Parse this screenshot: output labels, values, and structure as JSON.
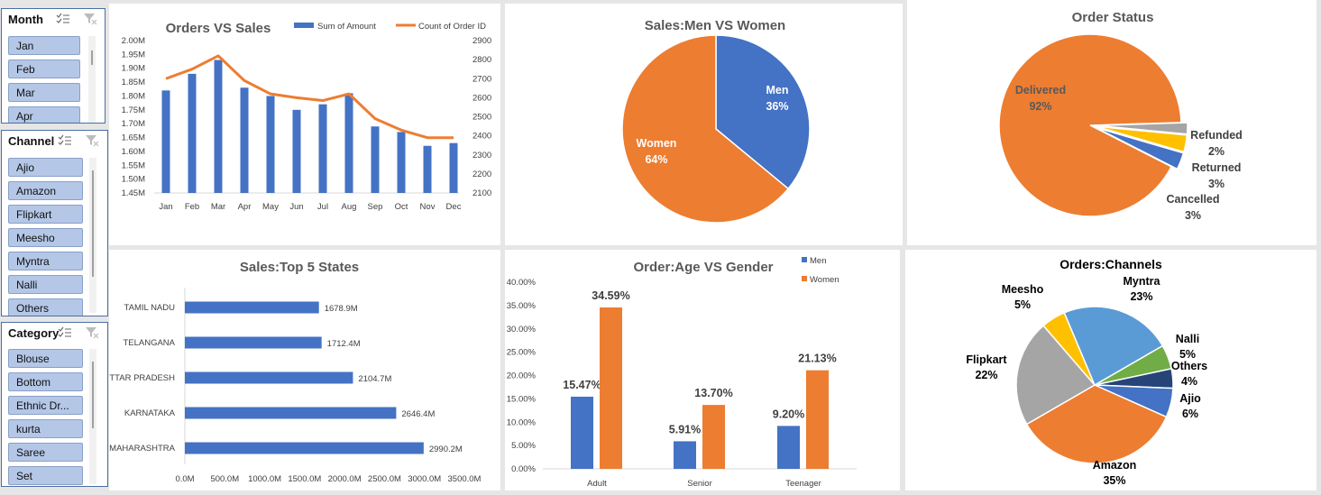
{
  "slicers": {
    "month": {
      "title": "Month",
      "items": [
        "Jan",
        "Feb",
        "Mar",
        "Apr"
      ]
    },
    "channel": {
      "title": "Channel",
      "items": [
        "Ajio",
        "Amazon",
        "Flipkart",
        "Meesho",
        "Myntra",
        "Nalli",
        "Others"
      ]
    },
    "category": {
      "title": "Category",
      "items": [
        "Blouse",
        "Bottom",
        "Ethnic Dr...",
        "kurta",
        "Saree",
        "Set"
      ]
    }
  },
  "colors": {
    "blue": "#4472c4",
    "orange": "#ed7d31",
    "gray": "#a5a5a5",
    "gold": "#ffc000",
    "lightblue": "#5b9bd5",
    "green": "#70ad47",
    "navy": "#264478"
  },
  "chart_data": [
    {
      "id": "orders_vs_sales",
      "type": "bar",
      "title": "Orders VS Sales",
      "categories": [
        "Jan",
        "Feb",
        "Mar",
        "Apr",
        "May",
        "Jun",
        "Jul",
        "Aug",
        "Sep",
        "Oct",
        "Nov",
        "Dec"
      ],
      "series": [
        {
          "name": "Sum of Amount",
          "type": "bar",
          "axis": "left",
          "values": [
            1.82,
            1.88,
            1.93,
            1.83,
            1.8,
            1.75,
            1.77,
            1.81,
            1.69,
            1.67,
            1.62,
            1.63
          ]
        },
        {
          "name": "Count of Order ID",
          "type": "line",
          "axis": "right",
          "values": [
            2700,
            2750,
            2820,
            2690,
            2620,
            2600,
            2585,
            2620,
            2490,
            2430,
            2390,
            2390
          ]
        }
      ],
      "y_left": {
        "min": 1.45,
        "max": 2.0,
        "ticks": [
          "2.00M",
          "1.95M",
          "1.90M",
          "1.85M",
          "1.80M",
          "1.75M",
          "1.70M",
          "1.65M",
          "1.60M",
          "1.55M",
          "1.50M",
          "1.45M"
        ]
      },
      "y_right": {
        "min": 2100,
        "max": 2900,
        "ticks": [
          "2900",
          "2800",
          "2700",
          "2600",
          "2500",
          "2400",
          "2300",
          "2200",
          "2100"
        ]
      },
      "legend": "top"
    },
    {
      "id": "sales_men_women",
      "type": "pie",
      "title": "Sales:Men VS Women",
      "slices": [
        {
          "label": "Men",
          "value": 36,
          "pct": "36%",
          "color": "#4472c4"
        },
        {
          "label": "Women",
          "value": 64,
          "pct": "64%",
          "color": "#ed7d31"
        }
      ]
    },
    {
      "id": "order_status",
      "type": "pie",
      "title": "Order Status",
      "slices": [
        {
          "label": "Delivered",
          "value": 92,
          "pct": "92%",
          "color": "#ed7d31"
        },
        {
          "label": "Refunded",
          "value": 2,
          "pct": "2%",
          "color": "#a5a5a5"
        },
        {
          "label": "Returned",
          "value": 3,
          "pct": "3%",
          "color": "#ffc000"
        },
        {
          "label": "Cancelled",
          "value": 3,
          "pct": "3%",
          "color": "#4472c4"
        }
      ]
    },
    {
      "id": "top5_states",
      "type": "bar",
      "orientation": "horizontal",
      "title": "Sales:Top 5 States",
      "categories": [
        "TAMIL NADU",
        "TELANGANA",
        "UTTAR PRADESH",
        "KARNATAKA",
        "MAHARASHTRA"
      ],
      "values": [
        1678.9,
        1712.4,
        2104.7,
        2646.4,
        2990.2
      ],
      "value_labels": [
        "1678.9M",
        "1712.4M",
        "2104.7M",
        "2646.4M",
        "2990.2M"
      ],
      "x_ticks": [
        "0.0M",
        "500.0M",
        "1000.0M",
        "1500.0M",
        "2000.0M",
        "2500.0M",
        "3000.0M",
        "3500.0M"
      ],
      "xlim": [
        0,
        3500
      ]
    },
    {
      "id": "age_vs_gender",
      "type": "bar",
      "title": "Order:Age VS Gender",
      "categories": [
        "Adult",
        "Senior",
        "Teenager"
      ],
      "series": [
        {
          "name": "Men",
          "values": [
            15.47,
            5.91,
            9.2
          ],
          "labels": [
            "15.47%",
            "5.91%",
            "9.20%"
          ]
        },
        {
          "name": "Women",
          "values": [
            34.59,
            13.7,
            21.13
          ],
          "labels": [
            "34.59%",
            "13.70%",
            "21.13%"
          ]
        }
      ],
      "y_ticks": [
        "40.00%",
        "35.00%",
        "30.00%",
        "25.00%",
        "20.00%",
        "15.00%",
        "10.00%",
        "5.00%",
        "0.00%"
      ],
      "ylim": [
        0,
        40
      ],
      "legend": "top-right"
    },
    {
      "id": "orders_channels",
      "type": "pie",
      "title": "Orders:Channels",
      "slices": [
        {
          "label": "Nalli",
          "value": 5,
          "pct": "5%",
          "color": "#70ad47"
        },
        {
          "label": "Others",
          "value": 4,
          "pct": "4%",
          "color": "#264478"
        },
        {
          "label": "Ajio",
          "value": 6,
          "pct": "6%",
          "color": "#4472c4"
        },
        {
          "label": "Amazon",
          "value": 35,
          "pct": "35%",
          "color": "#ed7d31"
        },
        {
          "label": "Flipkart",
          "value": 22,
          "pct": "22%",
          "color": "#a5a5a5"
        },
        {
          "label": "Meesho",
          "value": 5,
          "pct": "5%",
          "color": "#ffc000"
        },
        {
          "label": "Myntra",
          "value": 23,
          "pct": "23%",
          "color": "#5b9bd5"
        }
      ]
    }
  ]
}
